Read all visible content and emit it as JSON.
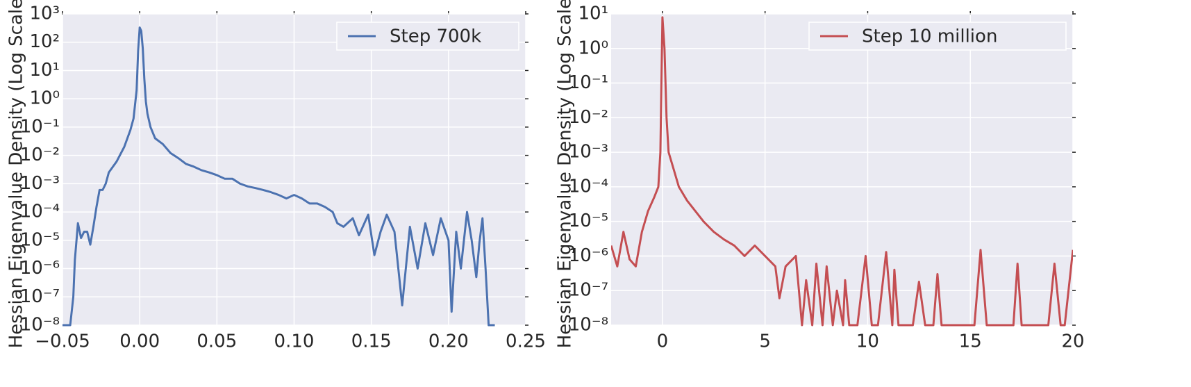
{
  "chart_data": [
    {
      "type": "line",
      "ylabel": "Hessian Eigenvalue Density (Log Scale)",
      "yscale": "log",
      "grid": true,
      "legend": "upper right",
      "xlim": [
        -0.05,
        0.25
      ],
      "xticks": [
        {
          "value": -0.05,
          "label": "−0.05"
        },
        {
          "value": 0,
          "label": "0.00"
        },
        {
          "value": 0.05,
          "label": "0.05"
        },
        {
          "value": 0.1,
          "label": "0.10"
        },
        {
          "value": 0.15,
          "label": "0.15"
        },
        {
          "value": 0.2,
          "label": "0.20"
        },
        {
          "value": 0.25,
          "label": "0.25"
        }
      ],
      "ylim": [
        1e-08,
        1000
      ],
      "yticks": [
        {
          "value": 1e-08,
          "label": "10⁻⁸"
        },
        {
          "value": 1e-07,
          "label": "10⁻⁷"
        },
        {
          "value": 1e-06,
          "label": "10⁻⁶"
        },
        {
          "value": 1e-05,
          "label": "10⁻⁵"
        },
        {
          "value": 0.0001,
          "label": "10⁻⁴"
        },
        {
          "value": 0.001,
          "label": "10⁻³"
        },
        {
          "value": 0.01,
          "label": "10⁻²"
        },
        {
          "value": 0.1,
          "label": "10⁻¹"
        },
        {
          "value": 1,
          "label": "10⁰"
        },
        {
          "value": 10,
          "label": "10¹"
        },
        {
          "value": 100,
          "label": "10²"
        },
        {
          "value": 1000,
          "label": "10³"
        }
      ],
      "x": [
        -0.05,
        -0.045,
        -0.043,
        -0.042,
        -0.04,
        -0.038,
        -0.036,
        -0.034,
        -0.032,
        -0.03,
        -0.028,
        -0.026,
        -0.024,
        -0.022,
        -0.02,
        -0.015,
        -0.01,
        -0.006,
        -0.004,
        -0.002,
        -0.001,
        0,
        0.001,
        0.002,
        0.003,
        0.004,
        0.005,
        0.007,
        0.01,
        0.015,
        0.02,
        0.025,
        0.03,
        0.035,
        0.04,
        0.045,
        0.05,
        0.055,
        0.06,
        0.065,
        0.07,
        0.075,
        0.08,
        0.085,
        0.09,
        0.095,
        0.1,
        0.105,
        0.11,
        0.115,
        0.12,
        0.125,
        0.128,
        0.132,
        0.138,
        0.142,
        0.148,
        0.152,
        0.156,
        0.16,
        0.165,
        0.17,
        0.175,
        0.18,
        0.185,
        0.19,
        0.195,
        0.2,
        0.202,
        0.205,
        0.208,
        0.212,
        0.215,
        0.218,
        0.22,
        0.222,
        0.224,
        0.226,
        0.23
      ],
      "series": [
        {
          "name": "Step 700k",
          "color": "#4c72b0",
          "values": [
            1e-08,
            1e-08,
            1e-07,
            2e-06,
            4e-05,
            1.2e-05,
            2e-05,
            2e-05,
            7e-06,
            3e-05,
            0.00015,
            0.0006,
            0.0006,
            0.001,
            0.0025,
            0.006,
            0.02,
            0.08,
            0.2,
            2,
            50,
            330,
            250,
            60,
            5,
            0.8,
            0.3,
            0.1,
            0.04,
            0.025,
            0.012,
            0.008,
            0.005,
            0.004,
            0.003,
            0.0025,
            0.002,
            0.0015,
            0.0015,
            0.001,
            0.0008,
            0.0007,
            0.0006,
            0.0005,
            0.0004,
            0.0003,
            0.0004,
            0.0003,
            0.0002,
            0.0002,
            0.00015,
            0.0001,
            4e-05,
            3e-05,
            6e-05,
            1.5e-05,
            8e-05,
            3e-06,
            2e-05,
            8e-05,
            2e-05,
            5e-08,
            3e-05,
            1e-06,
            4e-05,
            3e-06,
            6e-05,
            1e-05,
            3e-08,
            2e-05,
            1e-06,
            0.0001,
            1e-05,
            5e-07,
            8e-06,
            6e-05,
            1e-06,
            1e-08,
            1e-08
          ]
        }
      ]
    },
    {
      "type": "line",
      "ylabel": "Hessian Eigenvalue Density (Log Scale)",
      "yscale": "log",
      "grid": true,
      "legend": "upper right",
      "xlim": [
        -2.5,
        20
      ],
      "xticks": [
        0,
        5,
        10,
        15,
        20
      ],
      "ylim": [
        1e-08,
        10
      ],
      "yticks": [
        {
          "value": 1e-08,
          "label": "10⁻⁸"
        },
        {
          "value": 1e-07,
          "label": "10⁻⁷"
        },
        {
          "value": 1e-06,
          "label": "10⁻⁶"
        },
        {
          "value": 1e-05,
          "label": "10⁻⁵"
        },
        {
          "value": 0.0001,
          "label": "10⁻⁴"
        },
        {
          "value": 0.001,
          "label": "10⁻³"
        },
        {
          "value": 0.01,
          "label": "10⁻²"
        },
        {
          "value": 0.1,
          "label": "10⁻¹"
        },
        {
          "value": 1,
          "label": "10⁰"
        },
        {
          "value": 10,
          "label": "10¹"
        }
      ],
      "x": [
        -2.5,
        -2.2,
        -1.9,
        -1.6,
        -1.3,
        -1,
        -0.7,
        -0.4,
        -0.2,
        -0.1,
        0,
        0.1,
        0.2,
        0.3,
        0.5,
        0.8,
        1.2,
        1.6,
        2,
        2.5,
        3,
        3.5,
        4,
        4.5,
        5,
        5.5,
        5.7,
        6,
        6.5,
        6.8,
        7,
        7.3,
        7.5,
        7.8,
        8,
        8.3,
        8.5,
        8.8,
        8.9,
        9.1,
        9.5,
        9.9,
        10.2,
        10.5,
        10.9,
        11.2,
        11.3,
        11.5,
        12.2,
        12.5,
        12.8,
        13.2,
        13.4,
        13.6,
        15.2,
        15.5,
        15.8,
        17.1,
        17.3,
        17.5,
        18.8,
        19.1,
        19.4,
        19.6,
        20
      ],
      "series": [
        {
          "name": "Step 10 million",
          "color": "#c44e52",
          "values": [
            2e-06,
            5e-07,
            5e-06,
            8e-07,
            5e-07,
            5e-06,
            2e-05,
            5e-05,
            0.0001,
            0.001,
            8,
            1,
            0.01,
            0.001,
            0.0004,
            0.0001,
            4e-05,
            2e-05,
            1e-05,
            5e-06,
            3e-06,
            2e-06,
            1e-06,
            2e-06,
            1e-06,
            5e-07,
            6e-08,
            5e-07,
            1e-06,
            1e-08,
            2e-07,
            1e-08,
            6e-07,
            1e-08,
            5e-07,
            1e-08,
            1e-07,
            1e-08,
            2e-07,
            1e-08,
            1e-08,
            1e-06,
            1e-08,
            1e-08,
            1.3e-06,
            1e-08,
            4e-07,
            1e-08,
            1e-08,
            1.8e-07,
            1e-08,
            1e-08,
            3e-07,
            1e-08,
            1e-08,
            1.5e-06,
            1e-08,
            1e-08,
            6e-07,
            1e-08,
            1e-08,
            6e-07,
            1e-08,
            1e-08,
            1.5e-06
          ]
        }
      ]
    }
  ]
}
